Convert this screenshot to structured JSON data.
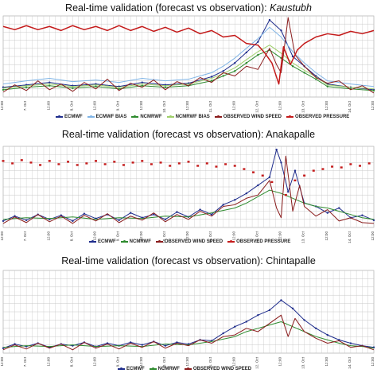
{
  "colors": {
    "ecmwf": "#1f2d8c",
    "ecmwf_bias": "#7fb4e6",
    "ncmrwf": "#2e8b2e",
    "ncmrwf_bias": "#9fcf6a",
    "observed_wind": "#8a1c1c",
    "observed_pressure": "#c41a1a",
    "grid": "#c8c8c8"
  },
  "chart_data": [
    {
      "type": "line",
      "title": "Real-time validation (forecast vs observation): ",
      "title_station": "Kaustubh",
      "x_ticks": [
        "12:00",
        "7. Oct",
        "12:00",
        "8. Oct",
        "12:00",
        "9. Oct",
        "12:00",
        "10. Oct",
        "12:00",
        "11. Oct",
        "12:00",
        "12. Oct",
        "12:00",
        "13. Oct",
        "12:00",
        "14. Oct",
        "12:00"
      ],
      "x_range": [
        0,
        16
      ],
      "y_range": [
        0,
        10
      ],
      "grid": true,
      "legend_position": "bottom",
      "legend": [
        "ECMWF",
        "ECMWF BIAS",
        "NCMRWF",
        "NCMRWF BIAS",
        "OBSERVED WIND SPEED",
        "OBSERVED PRESSURE"
      ],
      "series": [
        {
          "name": "ECMWF",
          "key": "ecmwf",
          "marker": true,
          "x": [
            0,
            1,
            2,
            3,
            4,
            5,
            6,
            7,
            8,
            9,
            9.5,
            10,
            10.5,
            11,
            11.5,
            12,
            12.5,
            13,
            13.5,
            14,
            15,
            16
          ],
          "values": [
            1.2,
            1.5,
            1.8,
            1.4,
            1.6,
            1.3,
            1.8,
            1.5,
            1.7,
            2.5,
            3.2,
            4.2,
            5.5,
            6.8,
            9.5,
            8.2,
            5.0,
            3.8,
            2.6,
            1.6,
            1.2,
            0.9
          ]
        },
        {
          "name": "ECMWF BIAS",
          "key": "ecmwf_bias",
          "marker": false,
          "x": [
            0,
            1,
            2,
            3,
            4,
            5,
            6,
            7,
            8,
            9,
            9.5,
            10,
            10.5,
            11,
            11.5,
            12,
            12.5,
            13,
            13.5,
            14,
            15,
            16
          ],
          "values": [
            1.6,
            2.0,
            2.3,
            1.9,
            2.1,
            1.8,
            2.3,
            2.0,
            2.2,
            3.0,
            3.8,
            4.8,
            6.0,
            7.2,
            8.6,
            7.4,
            5.6,
            4.2,
            3.0,
            2.0,
            1.6,
            1.3
          ]
        },
        {
          "name": "NCMRWF",
          "key": "ncmrwf",
          "marker": true,
          "x": [
            0,
            1,
            2,
            3,
            4,
            5,
            6,
            7,
            8,
            9,
            9.5,
            10,
            10.5,
            11,
            11.5,
            12,
            12.5,
            13,
            13.5,
            14,
            15,
            16
          ],
          "values": [
            0.9,
            1.2,
            1.4,
            1.1,
            1.3,
            1.0,
            1.4,
            1.2,
            1.4,
            2.0,
            2.6,
            3.2,
            4.2,
            5.2,
            5.8,
            4.8,
            3.8,
            3.0,
            2.2,
            1.3,
            1.0,
            0.8
          ]
        },
        {
          "name": "NCMRWF BIAS",
          "key": "ncmrwf_bias",
          "marker": false,
          "x": [
            0,
            1,
            2,
            3,
            4,
            5,
            6,
            7,
            8,
            9,
            9.5,
            10,
            10.5,
            11,
            11.5,
            12,
            12.5,
            13,
            13.5,
            14,
            15,
            16
          ],
          "values": [
            1.1,
            1.4,
            1.6,
            1.3,
            1.5,
            1.2,
            1.6,
            1.4,
            1.6,
            2.3,
            2.9,
            3.6,
            4.6,
            5.6,
            6.4,
            5.4,
            4.2,
            3.3,
            2.5,
            1.5,
            1.2,
            1.0
          ]
        },
        {
          "name": "OBSERVED WIND SPEED",
          "key": "observed_wind",
          "marker": false,
          "x": [
            0,
            0.5,
            1,
            1.5,
            2,
            2.5,
            3,
            3.5,
            4,
            4.5,
            5,
            5.5,
            6,
            6.5,
            7,
            7.5,
            8,
            8.5,
            9,
            9.5,
            10,
            10.5,
            11,
            11.5,
            11.8,
            12,
            12.3,
            12.6,
            13,
            13.5,
            14,
            14.5,
            15,
            15.5,
            16
          ],
          "values": [
            0.6,
            1.5,
            0.8,
            2.0,
            0.9,
            1.6,
            0.7,
            1.8,
            1.0,
            2.2,
            0.8,
            1.7,
            1.2,
            2.1,
            0.9,
            1.9,
            1.4,
            2.4,
            1.8,
            3.0,
            2.6,
            3.8,
            3.4,
            6.0,
            4.0,
            3.0,
            9.8,
            5.2,
            3.8,
            2.4,
            1.7,
            2.0,
            0.9,
            1.4,
            0.5
          ]
        },
        {
          "name": "OBSERVED PRESSURE",
          "key": "observed_pressure",
          "marker": false,
          "x": [
            0,
            0.5,
            1,
            1.5,
            2,
            2.5,
            3,
            3.5,
            4,
            4.5,
            5,
            5.5,
            6,
            6.5,
            7,
            7.5,
            8,
            8.5,
            9,
            9.5,
            10,
            10.5,
            11,
            11.3,
            11.6,
            11.9,
            12.1,
            12.4,
            12.7,
            13,
            13.5,
            14,
            14.5,
            15,
            15.5,
            16
          ],
          "values": [
            8.7,
            8.3,
            8.8,
            8.3,
            8.7,
            8.2,
            8.8,
            8.3,
            8.7,
            8.2,
            8.8,
            8.2,
            8.7,
            8.1,
            8.6,
            8.0,
            8.5,
            7.8,
            8.2,
            7.4,
            7.6,
            6.6,
            6.4,
            5.4,
            4.2,
            1.6,
            6.2,
            4.0,
            5.8,
            6.6,
            7.4,
            7.8,
            7.6,
            8.1,
            7.8,
            8.2
          ]
        }
      ]
    },
    {
      "type": "line",
      "title": "Real-time validation (forecast vs observation): ",
      "title_station": "Anakapalle",
      "x_ticks": [
        "12:00",
        "7. Oct",
        "12:00",
        "8. Oct",
        "12:00",
        "9. Oct",
        "12:00",
        "10. Oct",
        "12:00",
        "11. Oct",
        "12:00",
        "12. Oct",
        "12:00",
        "13. Oct",
        "12:00",
        "14. Oct",
        "12:00"
      ],
      "x_range": [
        0,
        16
      ],
      "y_range": [
        0,
        10
      ],
      "grid": true,
      "legend_position": "bottom",
      "legend": [
        "ECMWF",
        "NCMRWF",
        "OBSERVED WIND SPEED",
        "OBSERVED PRESSURE"
      ],
      "series": [
        {
          "name": "ECMWF",
          "key": "ecmwf",
          "marker": true,
          "x": [
            0,
            0.5,
            1,
            1.5,
            2,
            2.5,
            3,
            3.5,
            4,
            4.5,
            5,
            5.5,
            6,
            6.5,
            7,
            7.5,
            8,
            8.5,
            9,
            9.5,
            10,
            10.5,
            11,
            11.5,
            11.8,
            12,
            12.3,
            12.6,
            13,
            13.5,
            14,
            14.5,
            15,
            15.5,
            16
          ],
          "values": [
            0.8,
            1.4,
            0.9,
            1.6,
            1.0,
            1.5,
            0.8,
            1.7,
            1.1,
            1.6,
            0.9,
            1.8,
            1.2,
            1.6,
            1.0,
            1.9,
            1.3,
            2.2,
            1.6,
            2.8,
            3.4,
            4.2,
            5.2,
            6.2,
            9.6,
            8.0,
            4.4,
            7.0,
            3.0,
            2.6,
            1.8,
            2.4,
            1.2,
            1.5,
            0.9
          ]
        },
        {
          "name": "NCMRWF",
          "key": "ncmrwf",
          "marker": false,
          "x": [
            0,
            1,
            2,
            3,
            4,
            5,
            6,
            7,
            8,
            9,
            10,
            10.5,
            11,
            11.5,
            12,
            12.5,
            13,
            13.5,
            14,
            14.5,
            15,
            15.5,
            16
          ],
          "values": [
            1.0,
            1.2,
            1.1,
            1.3,
            1.0,
            1.2,
            1.1,
            1.4,
            1.3,
            1.8,
            2.4,
            3.0,
            3.8,
            4.6,
            4.2,
            3.6,
            3.0,
            2.6,
            2.4,
            2.0,
            1.6,
            1.2,
            1.0
          ]
        },
        {
          "name": "OBSERVED WIND SPEED",
          "key": "observed_wind",
          "marker": false,
          "x": [
            0,
            0.5,
            1,
            1.5,
            2,
            2.5,
            3,
            3.5,
            4,
            4.5,
            5,
            5.5,
            6,
            6.5,
            7,
            7.5,
            8,
            8.5,
            9,
            9.5,
            10,
            10.5,
            11,
            11.5,
            11.8,
            12,
            12.2,
            12.5,
            12.8,
            13,
            13.5,
            14,
            14.5,
            15,
            15.5,
            16
          ],
          "values": [
            0.5,
            1.3,
            0.6,
            1.6,
            0.7,
            1.4,
            0.5,
            1.5,
            0.8,
            1.7,
            0.6,
            1.4,
            0.9,
            1.8,
            0.7,
            1.6,
            1.0,
            2.0,
            1.4,
            2.6,
            2.8,
            3.6,
            4.0,
            5.8,
            2.4,
            1.2,
            8.8,
            2.0,
            5.2,
            2.6,
            1.4,
            2.2,
            0.8,
            1.2,
            0.6,
            0.5
          ]
        },
        {
          "name": "OBSERVED PRESSURE",
          "key": "observed_pressure",
          "marker": true,
          "x": [
            0,
            0.4,
            0.8,
            1.2,
            1.6,
            2.0,
            2.4,
            2.8,
            3.2,
            3.6,
            4.0,
            4.4,
            4.8,
            5.2,
            5.6,
            6.0,
            6.4,
            6.8,
            7.2,
            7.6,
            8.0,
            8.4,
            8.8,
            9.2,
            9.6,
            10.0,
            10.4,
            10.8,
            11.2,
            11.6,
            12.2,
            12.6,
            13.0,
            13.4,
            13.8,
            14.2,
            14.6,
            15.0,
            15.4,
            15.8
          ],
          "values": [
            8.2,
            7.9,
            8.3,
            8.0,
            7.7,
            8.2,
            7.8,
            8.1,
            7.7,
            7.9,
            8.2,
            7.8,
            8.1,
            7.7,
            8.0,
            8.2,
            7.8,
            8.0,
            7.6,
            7.9,
            8.1,
            7.6,
            7.9,
            7.5,
            7.8,
            7.6,
            7.2,
            6.8,
            6.4,
            5.6,
            4.0,
            5.8,
            6.4,
            7.0,
            7.2,
            7.5,
            7.4,
            7.8,
            7.6,
            7.9
          ]
        }
      ]
    },
    {
      "type": "line",
      "title": "Real-time validation (forecast vs observation): Chintapalle",
      "title_station": "",
      "x_ticks": [
        "12:00",
        "7. Oct",
        "12:00",
        "8. Oct",
        "12:00",
        "9. Oct",
        "12:00",
        "10. Oct",
        "12:00",
        "11. Oct",
        "12:00",
        "12. Oct",
        "12:00",
        "13. Oct",
        "12:00",
        "14. Oct",
        "12:00"
      ],
      "x_range": [
        0,
        16
      ],
      "y_range": [
        0,
        10
      ],
      "grid": true,
      "legend_position": "bottom",
      "legend": [
        "ECMWF",
        "NCMRWF",
        "OBSERVED WIND SPEED"
      ],
      "series": [
        {
          "name": "ECMWF",
          "key": "ecmwf",
          "marker": true,
          "x": [
            0,
            0.5,
            1,
            1.5,
            2,
            2.5,
            3,
            3.5,
            4,
            4.5,
            5,
            5.5,
            6,
            6.5,
            7,
            7.5,
            8,
            8.5,
            9,
            9.5,
            10,
            10.5,
            11,
            11.5,
            12,
            12.5,
            13,
            13.5,
            14,
            14.5,
            15,
            15.5,
            16
          ],
          "values": [
            0.6,
            1.1,
            0.8,
            1.2,
            0.7,
            1.1,
            0.9,
            1.3,
            0.8,
            1.2,
            0.9,
            1.3,
            1.0,
            1.4,
            0.9,
            1.3,
            1.1,
            1.6,
            1.5,
            2.4,
            3.2,
            3.8,
            4.6,
            5.2,
            6.4,
            5.4,
            4.0,
            3.0,
            2.2,
            1.6,
            1.2,
            0.9,
            0.7
          ]
        },
        {
          "name": "NCMRWF",
          "key": "ncmrwf",
          "marker": false,
          "x": [
            0,
            1,
            2,
            3,
            4,
            5,
            6,
            7,
            8,
            9,
            10,
            10.5,
            11,
            11.5,
            12,
            12.5,
            13,
            13.5,
            14,
            14.5,
            15,
            15.5,
            16
          ],
          "values": [
            0.7,
            0.9,
            0.8,
            1.0,
            0.8,
            0.9,
            0.8,
            1.1,
            1.0,
            1.4,
            2.0,
            2.6,
            3.0,
            3.4,
            3.8,
            3.2,
            2.6,
            2.0,
            1.6,
            1.2,
            0.9,
            0.8,
            0.6
          ]
        },
        {
          "name": "OBSERVED WIND SPEED",
          "key": "observed_wind",
          "marker": false,
          "x": [
            0,
            0.5,
            1,
            1.5,
            2,
            2.5,
            3,
            3.5,
            4,
            4.5,
            5,
            5.5,
            6,
            6.5,
            7,
            7.5,
            8,
            8.5,
            9,
            9.5,
            10,
            10.5,
            11,
            11.5,
            12,
            12.3,
            12.6,
            13,
            13.5,
            14,
            14.5,
            15,
            15.5,
            16
          ],
          "values": [
            0.4,
            1.0,
            0.5,
            1.2,
            0.6,
            1.1,
            0.4,
            1.3,
            0.6,
            1.1,
            0.5,
            1.2,
            0.7,
            1.4,
            0.6,
            1.2,
            0.9,
            1.6,
            1.2,
            2.0,
            2.2,
            3.0,
            2.6,
            3.6,
            4.6,
            2.0,
            4.2,
            2.6,
            1.8,
            1.2,
            1.5,
            0.7,
            0.9,
            0.4
          ]
        }
      ]
    }
  ]
}
